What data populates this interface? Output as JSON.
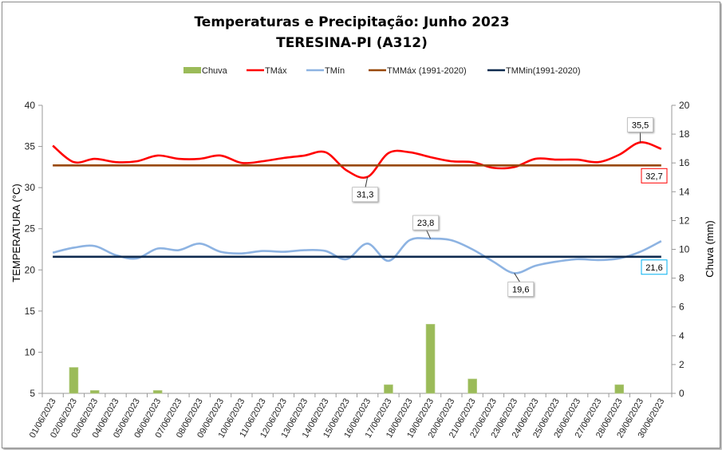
{
  "chart_data": {
    "type": "line",
    "title": "Temperaturas e Precipitação: Junho 2023",
    "subtitle": "TERESINA-PI (A312)",
    "ylabel": "TEMPERATURA (°C)",
    "y2label": "Chuva (mm)",
    "ylim": [
      5,
      40
    ],
    "yticks": [
      "5",
      "10",
      "15",
      "20",
      "25",
      "30",
      "35",
      "40"
    ],
    "y2lim": [
      0,
      20
    ],
    "y2ticks": [
      "0",
      "2",
      "4",
      "6",
      "8",
      "10",
      "12",
      "14",
      "16",
      "18",
      "20"
    ],
    "grid": false,
    "legend_position": "top",
    "categories": [
      "01/06/2023",
      "02/06/2023",
      "03/06/2023",
      "04/06/2023",
      "05/06/2023",
      "06/06/2023",
      "07/06/2023",
      "08/06/2023",
      "09/06/2023",
      "10/06/2023",
      "11/06/2023",
      "12/06/2023",
      "13/06/2023",
      "14/06/2023",
      "15/06/2023",
      "16/06/2023",
      "17/06/2023",
      "18/06/2023",
      "19/06/2023",
      "20/06/2023",
      "21/06/2023",
      "22/06/2023",
      "23/06/2023",
      "24/06/2023",
      "25/06/2023",
      "26/06/2023",
      "27/06/2023",
      "28/06/2023",
      "29/06/2023",
      "30/06/2023"
    ],
    "series": [
      {
        "name": "Chuva",
        "type": "bar",
        "axis": "right",
        "color": "#9bbb59",
        "values": [
          0,
          1.8,
          0.2,
          0,
          0,
          0.2,
          0,
          0,
          0,
          0,
          0,
          0,
          0,
          0,
          0,
          0,
          0.6,
          0,
          4.8,
          0,
          1.0,
          0,
          0,
          0,
          0,
          0,
          0,
          0.6,
          0,
          0
        ]
      },
      {
        "name": "TMáx",
        "type": "line",
        "axis": "left",
        "color": "#ff0000",
        "values": [
          35.1,
          33.1,
          33.5,
          33.1,
          33.2,
          33.9,
          33.5,
          33.5,
          33.9,
          33.0,
          33.2,
          33.6,
          33.9,
          34.3,
          32.1,
          31.3,
          34.2,
          34.3,
          33.7,
          33.2,
          33.1,
          32.4,
          32.5,
          33.5,
          33.4,
          33.4,
          33.1,
          34.0,
          35.5,
          34.7
        ]
      },
      {
        "name": "TMín",
        "type": "line",
        "axis": "left",
        "color": "#8db3e2",
        "values": [
          22.1,
          22.7,
          22.9,
          21.8,
          21.4,
          22.6,
          22.4,
          23.2,
          22.2,
          22.0,
          22.3,
          22.2,
          22.4,
          22.3,
          21.3,
          23.2,
          21.1,
          23.6,
          23.8,
          23.6,
          22.5,
          21.0,
          19.6,
          20.5,
          21.0,
          21.3,
          21.2,
          21.4,
          22.2,
          23.5
        ]
      },
      {
        "name": "TMMáx (1991-2020)",
        "type": "line",
        "axis": "left",
        "color": "#984807",
        "constant": 32.7
      },
      {
        "name": "TMMin(1991-2020)",
        "type": "line",
        "axis": "left",
        "color": "#0f2b4f",
        "constant": 21.6
      }
    ],
    "annotations": [
      {
        "series": "TMáx",
        "index": 15,
        "text": "31,3"
      },
      {
        "series": "TMáx",
        "index": 28,
        "text": "35,5"
      },
      {
        "series": "TMín",
        "index": 18,
        "text": "23,8"
      },
      {
        "series": "TMín",
        "index": 22,
        "text": "19,6"
      },
      {
        "series": "TMMáx (1991-2020)",
        "text": "32,7",
        "border": "#ff0000"
      },
      {
        "series": "TMMin(1991-2020)",
        "text": "21,6",
        "border": "#00b0f0"
      }
    ]
  }
}
